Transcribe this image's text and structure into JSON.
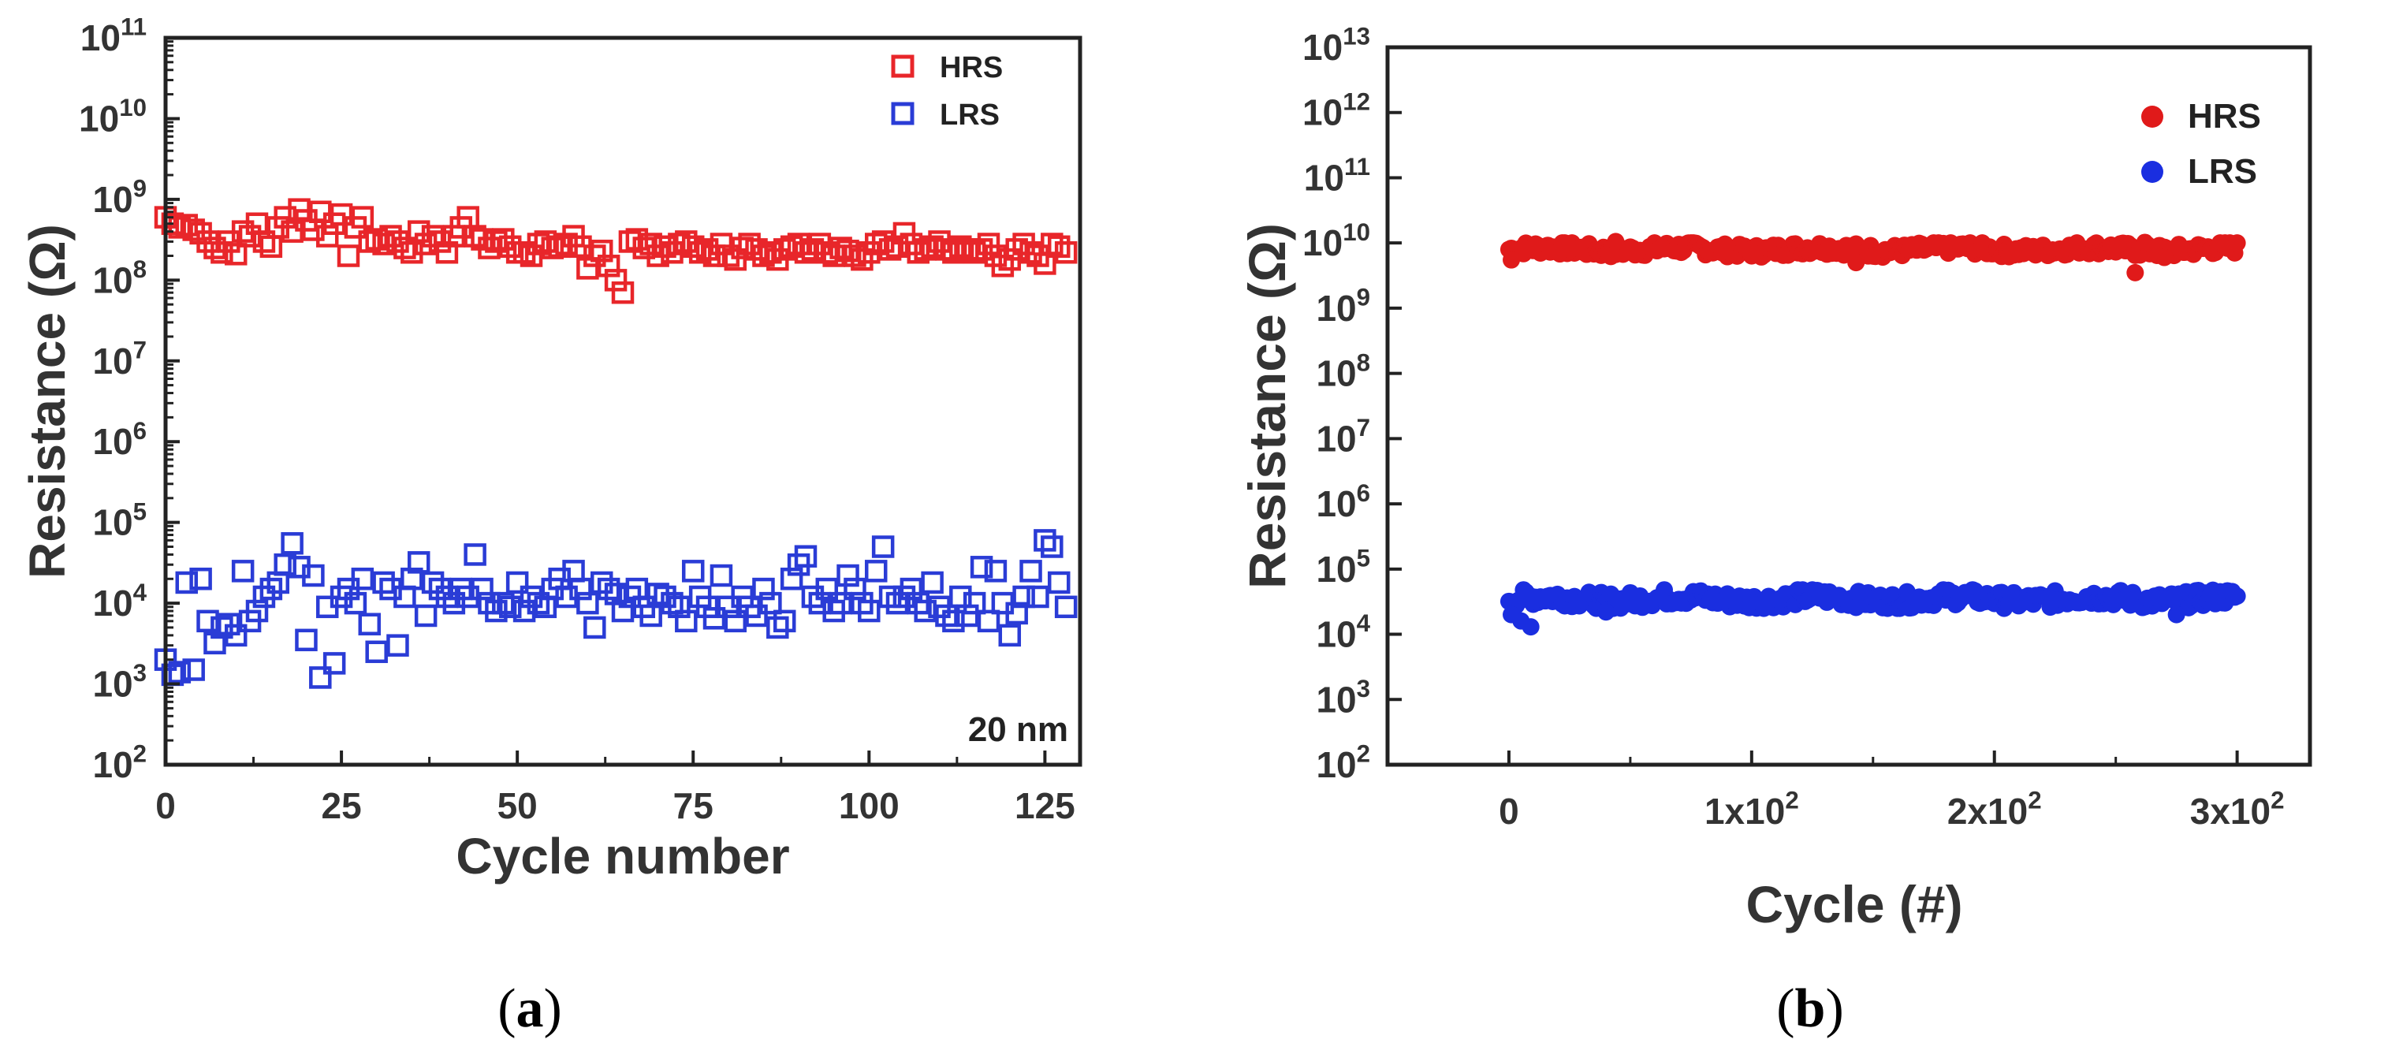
{
  "chart_data": [
    {
      "type": "scatter",
      "panel_label": "(a)",
      "panel_letter": "a",
      "xlabel": "Cycle number",
      "ylabel": "Resistance (Ω)",
      "xlim": [
        0,
        130
      ],
      "ylim_log10": [
        2,
        11
      ],
      "yscale": "log",
      "x_ticks": [
        0,
        25,
        50,
        75,
        100,
        125
      ],
      "x_tick_labels": [
        "0",
        "25",
        "50",
        "75",
        "100",
        "125"
      ],
      "y_tick_exponents": [
        2,
        3,
        4,
        5,
        6,
        7,
        8,
        9,
        10,
        11
      ],
      "annotation": "20 nm",
      "legend_position": "top-right",
      "marker": "open-square",
      "series": [
        {
          "name": "HRS",
          "color": "#e8262a",
          "x": [
            0,
            1,
            2,
            3,
            4,
            5,
            6,
            7,
            8,
            9,
            10,
            11,
            12,
            13,
            14,
            15,
            16,
            17,
            18,
            19,
            20,
            21,
            22,
            23,
            24,
            25,
            26,
            27,
            28,
            29,
            30,
            31,
            32,
            33,
            34,
            35,
            36,
            37,
            38,
            39,
            40,
            41,
            42,
            43,
            44,
            45,
            46,
            47,
            48,
            49,
            50,
            51,
            52,
            53,
            54,
            55,
            56,
            57,
            58,
            59,
            60,
            61,
            62,
            63,
            64,
            65,
            66,
            67,
            68,
            69,
            70,
            71,
            72,
            73,
            74,
            75,
            76,
            77,
            78,
            79,
            80,
            81,
            82,
            83,
            84,
            85,
            86,
            87,
            88,
            89,
            90,
            91,
            92,
            93,
            94,
            95,
            96,
            97,
            98,
            99,
            100,
            101,
            102,
            103,
            104,
            105,
            106,
            107,
            108,
            109,
            110,
            111,
            112,
            113,
            114,
            115,
            116,
            117,
            118,
            119,
            120,
            121,
            122,
            123,
            124,
            125,
            126,
            127,
            128
          ],
          "y": [
            600000000.0,
            500000000.0,
            450000000.0,
            480000000.0,
            420000000.0,
            380000000.0,
            300000000.0,
            250000000.0,
            220000000.0,
            300000000.0,
            210000000.0,
            400000000.0,
            350000000.0,
            500000000.0,
            300000000.0,
            260000000.0,
            450000000.0,
            600000000.0,
            400000000.0,
            750000000.0,
            550000000.0,
            420000000.0,
            700000000.0,
            350000000.0,
            500000000.0,
            650000000.0,
            200000000.0,
            450000000.0,
            600000000.0,
            300000000.0,
            320000000.0,
            280000000.0,
            350000000.0,
            300000000.0,
            250000000.0,
            220000000.0,
            400000000.0,
            280000000.0,
            350000000.0,
            300000000.0,
            220000000.0,
            350000000.0,
            450000000.0,
            600000000.0,
            350000000.0,
            320000000.0,
            250000000.0,
            300000000.0,
            320000000.0,
            260000000.0,
            220000000.0,
            220000000.0,
            200000000.0,
            280000000.0,
            300000000.0,
            250000000.0,
            260000000.0,
            280000000.0,
            350000000.0,
            260000000.0,
            140000000.0,
            200000000.0,
            230000000.0,
            150000000.0,
            100000000.0,
            70000000.0,
            300000000.0,
            320000000.0,
            250000000.0,
            280000000.0,
            200000000.0,
            260000000.0,
            220000000.0,
            280000000.0,
            300000000.0,
            260000000.0,
            220000000.0,
            240000000.0,
            200000000.0,
            280000000.0,
            200000000.0,
            180000000.0,
            250000000.0,
            280000000.0,
            240000000.0,
            200000000.0,
            220000000.0,
            180000000.0,
            240000000.0,
            260000000.0,
            280000000.0,
            220000000.0,
            240000000.0,
            280000000.0,
            220000000.0,
            200000000.0,
            250000000.0,
            230000000.0,
            200000000.0,
            180000000.0,
            220000000.0,
            280000000.0,
            300000000.0,
            240000000.0,
            260000000.0,
            380000000.0,
            280000000.0,
            220000000.0,
            240000000.0,
            260000000.0,
            300000000.0,
            240000000.0,
            220000000.0,
            260000000.0,
            240000000.0,
            220000000.0,
            240000000.0,
            280000000.0,
            200000000.0,
            150000000.0,
            180000000.0,
            240000000.0,
            280000000.0,
            220000000.0,
            200000000.0,
            160000000.0,
            280000000.0,
            260000000.0,
            220000000.0
          ]
        },
        {
          "name": "LRS",
          "color": "#2a3cd6",
          "x": [
            0,
            1,
            2,
            3,
            4,
            5,
            6,
            7,
            8,
            9,
            10,
            11,
            12,
            13,
            14,
            15,
            16,
            17,
            18,
            19,
            20,
            21,
            22,
            23,
            24,
            25,
            26,
            27,
            28,
            29,
            30,
            31,
            32,
            33,
            34,
            35,
            36,
            37,
            38,
            39,
            40,
            41,
            42,
            43,
            44,
            45,
            46,
            47,
            48,
            49,
            50,
            51,
            52,
            53,
            54,
            55,
            56,
            57,
            58,
            59,
            60,
            61,
            62,
            63,
            64,
            65,
            66,
            67,
            68,
            69,
            70,
            71,
            72,
            73,
            74,
            75,
            76,
            77,
            78,
            79,
            80,
            81,
            82,
            83,
            84,
            85,
            86,
            87,
            88,
            89,
            90,
            91,
            92,
            93,
            94,
            95,
            96,
            97,
            98,
            99,
            100,
            101,
            102,
            103,
            104,
            105,
            106,
            107,
            108,
            109,
            110,
            111,
            112,
            113,
            114,
            115,
            116,
            117,
            118,
            119,
            120,
            121,
            122,
            123,
            124,
            125,
            126,
            127,
            128
          ],
          "y": [
            2000.0,
            1300.0,
            1400.0,
            18000.0,
            1500.0,
            20000.0,
            6000.0,
            3200.0,
            5000.0,
            5500.0,
            4000.0,
            25000.0,
            6000.0,
            8000.0,
            12000.0,
            15000.0,
            18000.0,
            30000.0,
            55000.0,
            28000.0,
            3500.0,
            22000.0,
            1200.0,
            9000.0,
            1800.0,
            12000.0,
            15000.0,
            10000.0,
            20000.0,
            5500.0,
            2500.0,
            18000.0,
            15000.0,
            3000.0,
            12000.0,
            20000.0,
            32000.0,
            7000.0,
            18000.0,
            15000.0,
            12000.0,
            10000.0,
            15000.0,
            12000.0,
            40000.0,
            15000.0,
            10000.0,
            8000.0,
            10000.0,
            9000.0,
            18000.0,
            8000.0,
            12000.0,
            10000.0,
            9000.0,
            15000.0,
            20000.0,
            12000.0,
            25000.0,
            15000.0,
            10000.0,
            5000.0,
            18000.0,
            15000.0,
            13000.0,
            8000.0,
            12000.0,
            15000.0,
            9000.0,
            7000.0,
            13000.0,
            12000.0,
            10000.0,
            9000.0,
            6000.0,
            25000.0,
            12000.0,
            9000.0,
            6500.0,
            22000.0,
            9000.0,
            6000.0,
            12000.0,
            9000.0,
            7000.0,
            15000.0,
            10000.0,
            5000.0,
            6000.0,
            20000.0,
            30000.0,
            38000.0,
            12000.0,
            10000.0,
            15000.0,
            8000.0,
            10000.0,
            22000.0,
            15000.0,
            10000.0,
            8000.0,
            25000.0,
            50000.0,
            12000.0,
            10000.0,
            12000.0,
            15000.0,
            10000.0,
            8000.0,
            18000.0,
            9000.0,
            7000.0,
            6000.0,
            12000.0,
            7000.0,
            10000.0,
            28000.0,
            6000.0,
            25000.0,
            10000.0,
            4000.0,
            7500.0,
            12000.0,
            25000.0,
            12000.0,
            60000.0,
            50000.0,
            18000.0,
            9000.0
          ]
        }
      ]
    },
    {
      "type": "scatter",
      "panel_label": "(b)",
      "panel_letter": "b",
      "xlabel": "Cycle (#)",
      "ylabel": "Resistance (Ω)",
      "xlim": [
        -50,
        330
      ],
      "ylim_log10": [
        2,
        13
      ],
      "yscale": "log",
      "x_ticks": [
        0,
        100,
        200,
        300
      ],
      "x_tick_labels": [
        "0",
        "1x10",
        "2x10",
        "3x10"
      ],
      "x_tick_exponent_labels": [
        "",
        "2",
        "2",
        "2"
      ],
      "y_tick_exponents": [
        2,
        3,
        4,
        5,
        6,
        7,
        8,
        9,
        10,
        11,
        12,
        13
      ],
      "legend_position": "top-right",
      "marker": "filled-circle",
      "series": [
        {
          "name": "HRS",
          "color": "#e01a1a",
          "x_range": [
            0,
            300
          ],
          "typical_value": 8000000000.0,
          "band": [
            6000000000.0,
            10000000000.0
          ],
          "outliers": [
            {
              "x": 1,
              "y": 5500000000.0
            },
            {
              "x": 44,
              "y": 10500000000.0
            },
            {
              "x": 143,
              "y": 5000000000.0
            },
            {
              "x": 258,
              "y": 3500000000.0
            },
            {
              "x": 262,
              "y": 10200000000.0
            },
            {
              "x": 270,
              "y": 6000000000.0
            }
          ]
        },
        {
          "name": "LRS",
          "color": "#1a2ee0",
          "x_range": [
            0,
            300
          ],
          "typical_value": 35000.0,
          "band": [
            25000.0,
            48000.0
          ],
          "outliers": [
            {
              "x": 1,
              "y": 20000.0
            },
            {
              "x": 5,
              "y": 16000.0
            },
            {
              "x": 9,
              "y": 13000.0
            },
            {
              "x": 40,
              "y": 22000.0
            },
            {
              "x": 275,
              "y": 20000.0
            }
          ]
        }
      ]
    }
  ]
}
